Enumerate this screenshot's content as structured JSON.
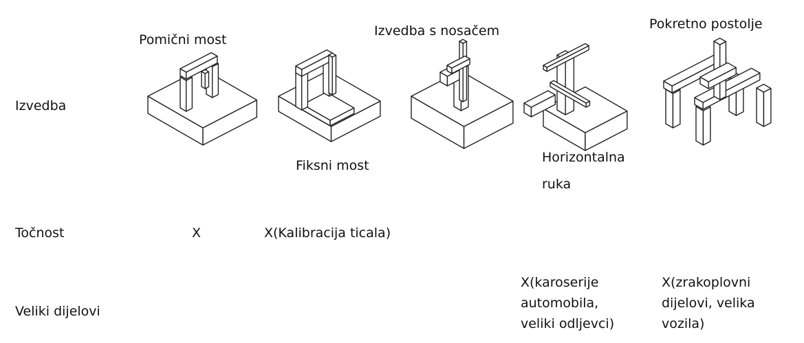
{
  "rows": [
    "Izvedba",
    "Točnost",
    "Veliki dijelovi"
  ],
  "machines": [
    {
      "label": [
        "Pomični most"
      ]
    },
    {
      "label": [
        "Fiksni most"
      ]
    },
    {
      "label": [
        "Izvedba s nosačem"
      ]
    },
    {
      "label": [
        "Horizontalna",
        "ruka"
      ]
    },
    {
      "label": [
        "Pokretno postolje"
      ]
    }
  ],
  "accuracy": [
    [
      "X"
    ],
    [
      "X(Kalibracija ticala)"
    ]
  ],
  "large_parts": [
    [
      "X(karoserije",
      "automobila,",
      "veliki odljevci)"
    ],
    [
      "X(zrakoplovni",
      "dijelovi, velika",
      "vozila)"
    ]
  ]
}
